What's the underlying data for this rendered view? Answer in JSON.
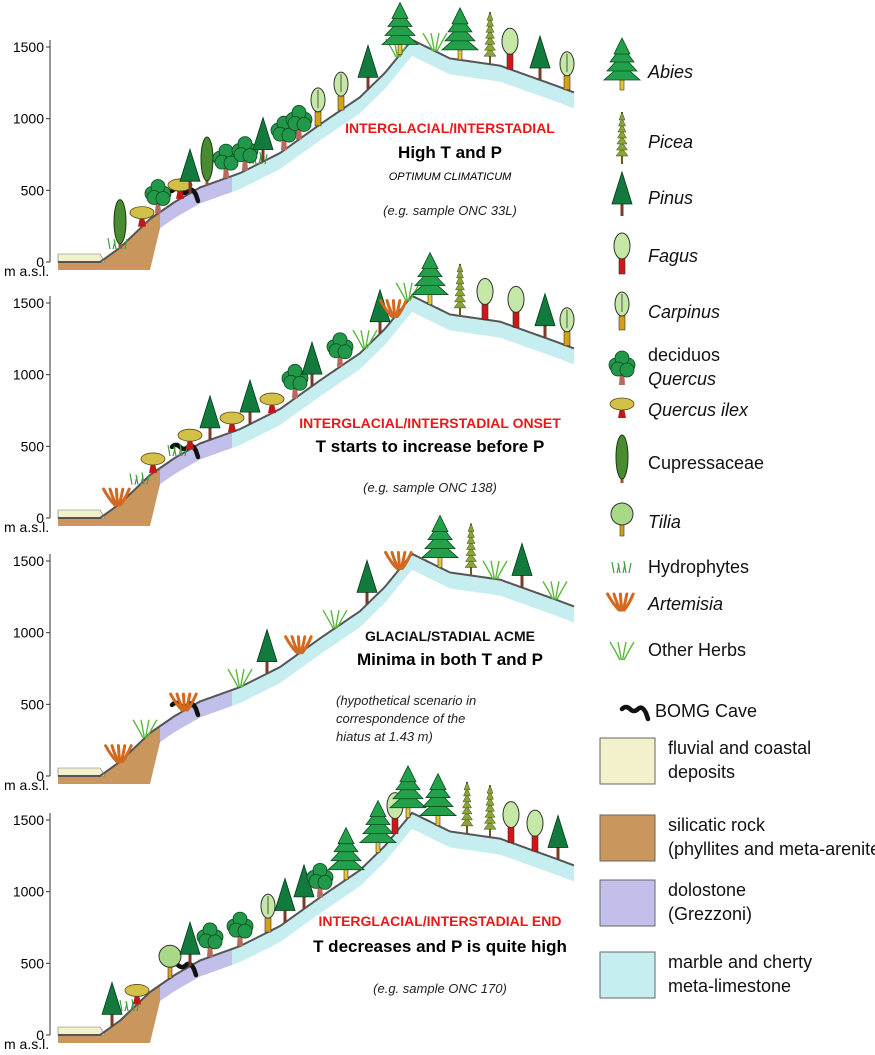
{
  "axis": {
    "ticks": [
      "1500",
      "1000",
      "500",
      "0"
    ],
    "unit": "m a.s.l."
  },
  "panels": [
    {
      "title": "INTERGLACIAL/INTERSTADIAL",
      "title_color": "#e8191b",
      "subtitle": "High T and P",
      "extra": "OPTIMUM CLIMATICUM",
      "note": [
        "(e.g. sample ONC 33L)"
      ]
    },
    {
      "title": "INTERGLACIAL/INTERSTADIAL ONSET",
      "title_color": "#e8191b",
      "subtitle": "T starts to increase before P",
      "note": [
        "(e.g. sample ONC 138)"
      ]
    },
    {
      "title": "GLACIAL/STADIAL ACME",
      "title_color": "#111111",
      "subtitle": "Minima in both T and P",
      "note": [
        "(hypothetical scenario in",
        "correspondence of the",
        "hiatus at 1.43 m)"
      ]
    },
    {
      "title": "INTERGLACIAL/INTERSTADIAL END",
      "title_color": "#e8191b",
      "subtitle": "T decreases and P is quite high",
      "note": [
        "(e.g. sample ONC 170)"
      ]
    }
  ],
  "legend": [
    {
      "lines": [
        {
          "text": "Abies",
          "italic": true
        }
      ]
    },
    {
      "lines": [
        {
          "text": "Picea",
          "italic": true
        }
      ]
    },
    {
      "lines": [
        {
          "text": "Pinus",
          "italic": true
        }
      ]
    },
    {
      "lines": [
        {
          "text": "Fagus",
          "italic": true
        }
      ]
    },
    {
      "lines": [
        {
          "text": "Carpinus",
          "italic": true
        }
      ]
    },
    {
      "lines": [
        {
          "text": "deciduos",
          "italic": false
        },
        {
          "text": "Quercus",
          "italic": true
        }
      ]
    },
    {
      "lines": [
        {
          "text": "Quercus ilex",
          "italic": true
        }
      ]
    },
    {
      "lines": [
        {
          "text": "Cupressaceae",
          "italic": false
        }
      ]
    },
    {
      "lines": [
        {
          "text": "Tilia",
          "italic": true
        }
      ]
    },
    {
      "lines": [
        {
          "text": "Hydrophytes",
          "italic": false
        }
      ]
    },
    {
      "lines": [
        {
          "text": "Artemisia",
          "italic": true
        }
      ]
    },
    {
      "lines": [
        {
          "text": "Other Herbs",
          "italic": false
        }
      ]
    },
    {
      "lines": [
        {
          "text": "BOMG Cave",
          "italic": false
        }
      ]
    },
    {
      "lines": [
        {
          "text": "fluvial and coastal",
          "italic": false
        },
        {
          "text": "deposits",
          "italic": false
        }
      ],
      "color": "#f3f0cc"
    },
    {
      "lines": [
        {
          "text": "silicatic rock",
          "italic": false
        },
        {
          "text": "(phyllites and meta-arenite)",
          "italic": false
        }
      ],
      "color": "#c9965e"
    },
    {
      "lines": [
        {
          "text": "dolostone",
          "italic": false
        },
        {
          "text": "(Grezzoni)",
          "italic": false
        }
      ],
      "color": "#c2c0ea"
    },
    {
      "lines": [
        {
          "text": "marble and cherty",
          "italic": false
        },
        {
          "text": "meta-limestone",
          "italic": false
        }
      ],
      "color": "#c6eef0"
    }
  ]
}
